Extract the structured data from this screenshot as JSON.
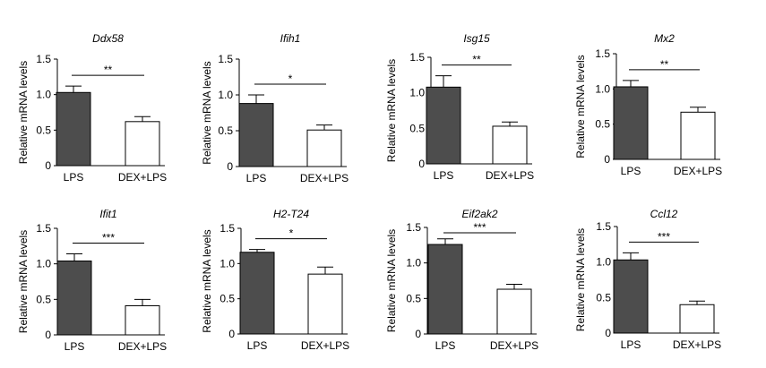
{
  "chart_data": [
    {
      "type": "bar",
      "title": "Ddx58",
      "ylabel": "Relative mRNA levels",
      "categories": [
        "LPS",
        "DEX+LPS"
      ],
      "values": [
        1.03,
        0.62
      ],
      "errors": [
        0.09,
        0.07
      ],
      "yticks": [
        "0",
        "0.5",
        "1.0",
        "1.5"
      ],
      "ylim": [
        0,
        1.5
      ],
      "significance": "**",
      "bar_colors": [
        "#4d4d4d",
        "#ffffff"
      ]
    },
    {
      "type": "bar",
      "title": "Ifih1",
      "ylabel": "Relative mRNA levels",
      "categories": [
        "LPS",
        "DEX+LPS"
      ],
      "values": [
        0.88,
        0.51
      ],
      "errors": [
        0.12,
        0.07
      ],
      "yticks": [
        "0",
        "0.5",
        "1.0",
        "1.5"
      ],
      "ylim": [
        0,
        1.5
      ],
      "significance": "*",
      "bar_colors": [
        "#4d4d4d",
        "#ffffff"
      ]
    },
    {
      "type": "bar",
      "title": "Isg15",
      "ylabel": "Relative mRNA levels",
      "categories": [
        "LPS",
        "DEX+LPS"
      ],
      "values": [
        1.08,
        0.53
      ],
      "errors": [
        0.16,
        0.06
      ],
      "yticks": [
        "0",
        "0.5",
        "1.0",
        "1.5"
      ],
      "ylim": [
        0,
        1.5
      ],
      "significance": "**",
      "bar_colors": [
        "#4d4d4d",
        "#ffffff"
      ]
    },
    {
      "type": "bar",
      "title": "Mx2",
      "ylabel": "Relative mRNA levels",
      "categories": [
        "LPS",
        "DEX+LPS"
      ],
      "values": [
        1.03,
        0.67
      ],
      "errors": [
        0.09,
        0.07
      ],
      "yticks": [
        "0",
        "0.5",
        "1.0",
        "1.5"
      ],
      "ylim": [
        0,
        1.5
      ],
      "significance": "**",
      "bar_colors": [
        "#4d4d4d",
        "#ffffff"
      ]
    },
    {
      "type": "bar",
      "title": "Ifit1",
      "ylabel": "Relative mRNA levels",
      "categories": [
        "LPS",
        "DEX+LPS"
      ],
      "values": [
        1.04,
        0.41
      ],
      "errors": [
        0.1,
        0.09
      ],
      "yticks": [
        "0",
        "0.5",
        "1.0",
        "1.5"
      ],
      "ylim": [
        0,
        1.5
      ],
      "significance": "***",
      "bar_colors": [
        "#4d4d4d",
        "#ffffff"
      ]
    },
    {
      "type": "bar",
      "title": "H2-T24",
      "ylabel": "Relative mRNA levels",
      "categories": [
        "LPS",
        "DEX+LPS"
      ],
      "values": [
        1.16,
        0.85
      ],
      "errors": [
        0.04,
        0.1
      ],
      "yticks": [
        "0",
        "0.5",
        "1.0",
        "1.5"
      ],
      "ylim": [
        0,
        1.5
      ],
      "significance": "*",
      "bar_colors": [
        "#4d4d4d",
        "#ffffff"
      ]
    },
    {
      "type": "bar",
      "title": "Eif2ak2",
      "ylabel": "Relative mRNA levels",
      "categories": [
        "LPS",
        "DEX+LPS"
      ],
      "values": [
        1.26,
        0.63
      ],
      "errors": [
        0.08,
        0.07
      ],
      "yticks": [
        "0",
        "0.5",
        "1.0",
        "1.5"
      ],
      "ylim": [
        0,
        1.5
      ],
      "significance": "***",
      "bar_colors": [
        "#4d4d4d",
        "#ffffff"
      ]
    },
    {
      "type": "bar",
      "title": "Ccl12",
      "ylabel": "Relative mRNA levels",
      "categories": [
        "LPS",
        "DEX+LPS"
      ],
      "values": [
        1.03,
        0.4
      ],
      "errors": [
        0.1,
        0.05
      ],
      "yticks": [
        "0",
        "0.5",
        "1.0",
        "1.5"
      ],
      "ylim": [
        0,
        1.5
      ],
      "significance": "***",
      "bar_colors": [
        "#4d4d4d",
        "#ffffff"
      ]
    }
  ]
}
